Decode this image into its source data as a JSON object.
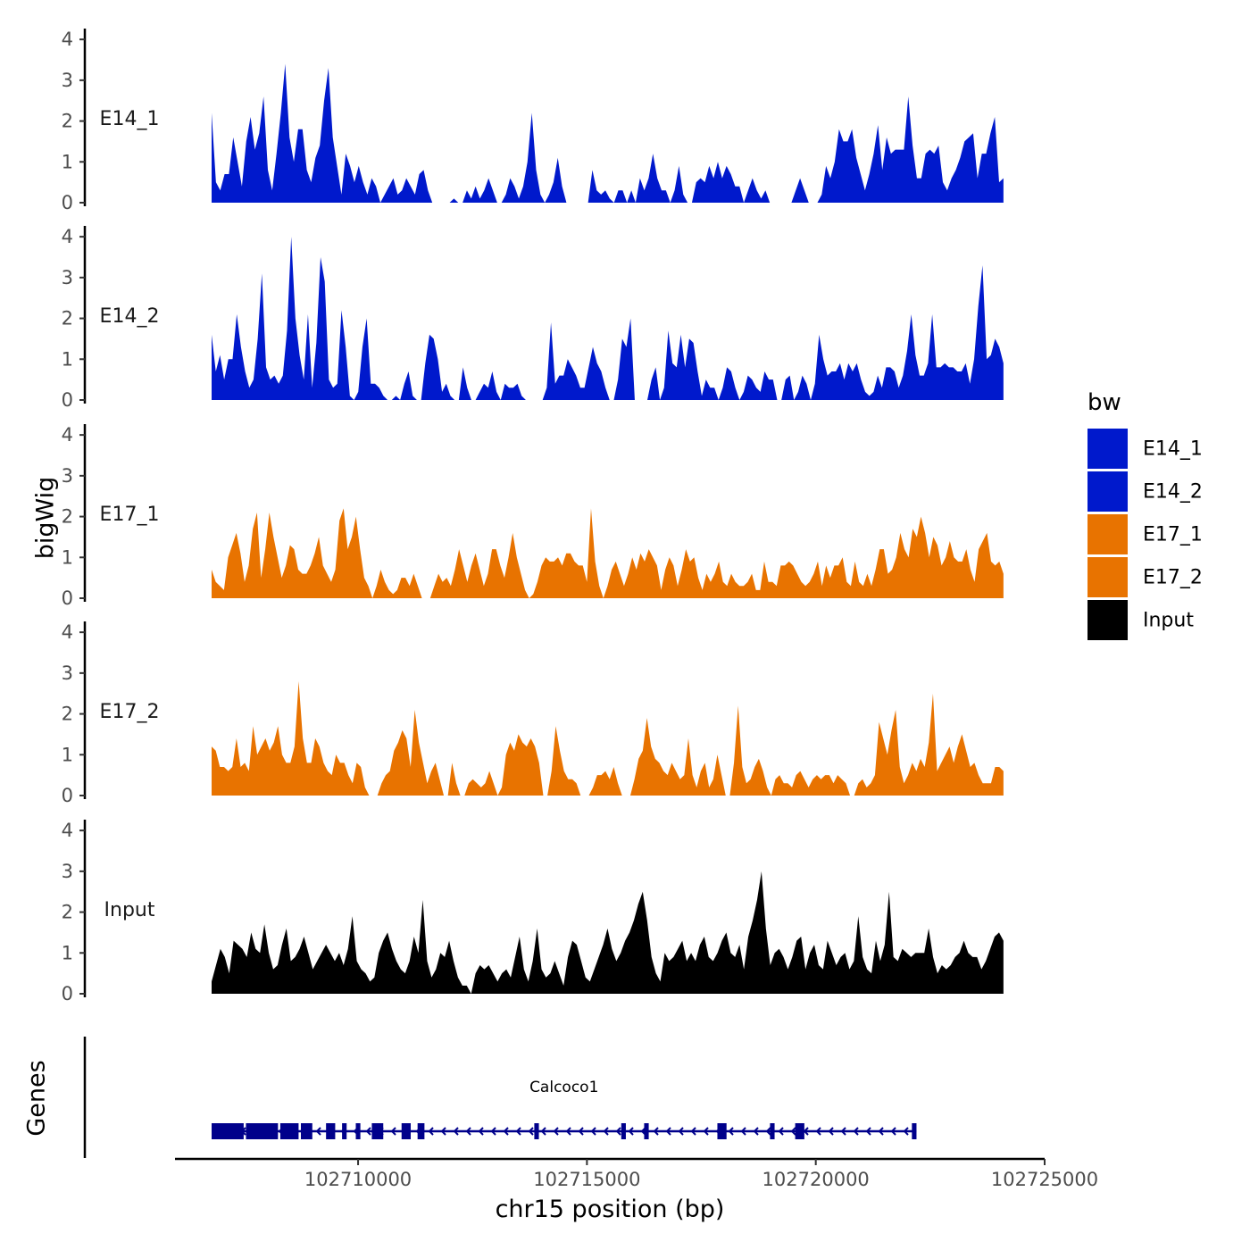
{
  "chart_data": {
    "type": "area",
    "xlabel": "chr15 position (bp)",
    "ylabel": "bigWig",
    "genes_label": "Genes",
    "xlim": [
      102706000,
      102725000
    ],
    "x_ticks": [
      102710000,
      102715000,
      102720000,
      102725000
    ],
    "x_tick_labels": [
      "102710000",
      "102715000",
      "102720000",
      "102725000"
    ],
    "data_range": [
      102706800,
      102724100
    ],
    "ylim": [
      0,
      4.2
    ],
    "y_ticks": [
      0,
      1,
      2,
      3,
      4
    ],
    "y_tick_labels": [
      "0",
      "1",
      "2",
      "3",
      "4"
    ],
    "tracks": [
      {
        "name": "E14_1",
        "color": "#0019cc",
        "values": [
          2.2,
          0.5,
          0.3,
          0.7,
          0.7,
          1.6,
          1.0,
          0.4,
          1.5,
          2.1,
          1.3,
          1.7,
          2.6,
          0.8,
          0.3,
          1.2,
          2.2,
          3.4,
          1.6,
          1.0,
          1.8,
          1.8,
          0.8,
          0.5,
          1.1,
          1.4,
          2.5,
          3.3,
          1.6,
          0.9,
          0.2,
          1.2,
          0.9,
          0.5,
          0.9,
          0.5,
          0.2,
          0.6,
          0.4,
          0.0,
          0.2,
          0.4,
          0.6,
          0.2,
          0.3,
          0.6,
          0.4,
          0.2,
          0.7,
          0.8,
          0.3,
          0.0,
          0.0,
          0.0,
          0.0,
          0.0,
          0.1,
          0.0,
          0.0,
          0.3,
          0.1,
          0.4,
          0.1,
          0.3,
          0.6,
          0.3,
          0.0,
          0.0,
          0.2,
          0.6,
          0.4,
          0.1,
          0.4,
          1.0,
          2.2,
          0.8,
          0.2,
          0.0,
          0.2,
          0.5,
          1.1,
          0.4,
          0.0,
          0.0,
          0.0,
          0.0,
          0.0,
          0.0,
          0.8,
          0.3,
          0.2,
          0.3,
          0.1,
          0.0,
          0.3,
          0.3,
          0.0,
          0.3,
          0.0,
          0.6,
          0.3,
          0.6,
          1.2,
          0.6,
          0.3,
          0.3,
          0.0,
          0.3,
          0.9,
          0.2,
          0.0,
          0.0,
          0.5,
          0.6,
          0.5,
          0.9,
          0.6,
          1.0,
          0.6,
          0.9,
          0.7,
          0.4,
          0.4,
          0.0,
          0.3,
          0.6,
          0.3,
          0.1,
          0.3,
          0.0,
          0.0,
          0.0,
          0.0,
          0.0,
          0.0,
          0.3,
          0.6,
          0.3,
          0.0,
          0.0,
          0.0,
          0.2,
          0.9,
          0.6,
          1.0,
          1.8,
          1.5,
          1.5,
          1.8,
          1.1,
          0.7,
          0.3,
          0.7,
          1.2,
          1.9,
          0.8,
          1.6,
          1.2,
          1.3,
          1.3,
          1.3,
          2.6,
          1.4,
          0.6,
          0.6,
          1.2,
          1.3,
          1.2,
          1.4,
          0.5,
          0.3,
          0.6,
          0.8,
          1.1,
          1.5,
          1.6,
          1.7,
          0.6,
          1.2,
          1.2,
          1.7,
          2.1,
          0.5,
          0.6
        ]
      },
      {
        "name": "E14_2",
        "color": "#0019cc",
        "values": [
          1.6,
          0.7,
          1.1,
          0.5,
          1.0,
          1.0,
          2.1,
          1.3,
          0.7,
          0.3,
          0.5,
          1.5,
          3.1,
          0.8,
          0.5,
          0.6,
          0.4,
          0.6,
          1.7,
          4.0,
          2.0,
          1.1,
          0.5,
          2.1,
          0.3,
          1.4,
          3.5,
          2.9,
          0.5,
          0.3,
          0.4,
          2.2,
          1.3,
          0.1,
          0.0,
          0.2,
          1.3,
          2.0,
          0.4,
          0.4,
          0.3,
          0.1,
          0.0,
          0.0,
          0.1,
          0.0,
          0.4,
          0.7,
          0.1,
          0.0,
          0.0,
          0.9,
          1.6,
          1.5,
          1.0,
          0.2,
          0.4,
          0.1,
          0.0,
          0.0,
          0.8,
          0.3,
          0.0,
          0.0,
          0.2,
          0.4,
          0.3,
          0.7,
          0.2,
          0.0,
          0.4,
          0.3,
          0.3,
          0.4,
          0.1,
          0.0,
          0.0,
          0.0,
          0.0,
          0.0,
          0.3,
          1.9,
          0.4,
          0.6,
          0.6,
          1.0,
          0.8,
          0.6,
          0.3,
          0.3,
          0.8,
          1.3,
          0.9,
          0.7,
          0.3,
          0.0,
          0.0,
          0.5,
          1.5,
          1.3,
          2.0,
          0.0,
          0.0,
          0.0,
          0.0,
          0.5,
          0.8,
          0.0,
          0.3,
          1.7,
          0.9,
          0.8,
          1.6,
          0.8,
          1.5,
          1.4,
          0.7,
          0.1,
          0.5,
          0.3,
          0.3,
          0.0,
          0.3,
          0.8,
          0.7,
          0.3,
          0.0,
          0.2,
          0.6,
          0.5,
          0.3,
          0.2,
          0.7,
          0.5,
          0.5,
          0.0,
          0.0,
          0.5,
          0.6,
          0.0,
          0.2,
          0.6,
          0.4,
          0.0,
          0.4,
          1.6,
          1.0,
          0.6,
          0.7,
          0.7,
          0.9,
          0.5,
          0.9,
          0.7,
          0.9,
          0.5,
          0.2,
          0.1,
          0.2,
          0.6,
          0.3,
          0.8,
          0.8,
          0.7,
          0.3,
          0.6,
          1.2,
          2.1,
          1.1,
          0.6,
          0.6,
          0.9,
          2.1,
          0.8,
          0.8,
          0.9,
          0.8,
          0.8,
          0.7,
          0.7,
          0.9,
          0.4,
          1.0,
          2.3,
          3.3,
          1.0,
          1.1,
          1.5,
          1.3,
          0.9
        ]
      },
      {
        "name": "E17_1",
        "color": "#e87300",
        "values": [
          0.7,
          0.4,
          0.3,
          0.2,
          1.0,
          1.3,
          1.6,
          1.1,
          0.4,
          0.8,
          1.7,
          2.1,
          0.5,
          1.2,
          2.1,
          1.5,
          1.0,
          0.5,
          0.8,
          1.3,
          1.2,
          0.7,
          0.6,
          0.6,
          0.8,
          1.1,
          1.5,
          0.8,
          0.6,
          0.4,
          0.7,
          1.9,
          2.2,
          1.2,
          1.5,
          2.0,
          1.2,
          0.5,
          0.3,
          0.0,
          0.3,
          0.7,
          0.4,
          0.2,
          0.1,
          0.2,
          0.5,
          0.5,
          0.3,
          0.6,
          0.3,
          0.0,
          0.0,
          0.0,
          0.3,
          0.6,
          0.4,
          0.5,
          0.3,
          0.7,
          1.2,
          0.8,
          0.4,
          0.8,
          1.1,
          0.7,
          0.3,
          0.6,
          1.2,
          1.2,
          0.8,
          0.5,
          1.0,
          1.6,
          1.0,
          0.6,
          0.2,
          0.0,
          0.1,
          0.4,
          0.8,
          1.0,
          0.9,
          0.9,
          1.0,
          0.8,
          1.1,
          1.1,
          0.9,
          0.8,
          0.8,
          0.4,
          2.2,
          0.9,
          0.3,
          0.0,
          0.3,
          0.7,
          0.9,
          0.6,
          0.3,
          0.6,
          1.0,
          0.7,
          1.1,
          0.9,
          1.2,
          1.0,
          0.8,
          0.2,
          0.7,
          1.0,
          0.8,
          0.3,
          0.7,
          1.2,
          0.9,
          1.0,
          0.5,
          0.2,
          0.6,
          0.4,
          0.6,
          0.9,
          0.4,
          0.3,
          0.6,
          0.4,
          0.3,
          0.3,
          0.4,
          0.6,
          0.2,
          0.2,
          0.9,
          0.4,
          0.4,
          0.3,
          0.8,
          0.8,
          0.9,
          0.8,
          0.6,
          0.4,
          0.3,
          0.4,
          0.6,
          0.9,
          0.3,
          0.8,
          0.5,
          0.8,
          0.8,
          1.0,
          0.4,
          0.3,
          0.9,
          0.4,
          0.3,
          0.6,
          0.3,
          0.7,
          1.2,
          1.2,
          0.6,
          0.7,
          1.0,
          1.6,
          1.2,
          1.0,
          1.7,
          1.5,
          2.0,
          1.6,
          1.0,
          1.5,
          1.3,
          0.8,
          1.0,
          1.4,
          1.0,
          0.9,
          0.9,
          1.2,
          0.7,
          0.4,
          1.2,
          1.4,
          1.6,
          0.9,
          0.8,
          0.9,
          0.6
        ]
      },
      {
        "name": "E17_2",
        "color": "#e87300",
        "values": [
          1.2,
          1.1,
          0.7,
          0.7,
          0.6,
          0.7,
          1.4,
          0.7,
          0.8,
          0.6,
          1.7,
          1.0,
          1.2,
          1.4,
          1.1,
          1.3,
          1.7,
          1.0,
          0.8,
          0.8,
          1.2,
          2.8,
          1.4,
          0.8,
          0.8,
          1.4,
          1.2,
          0.8,
          0.6,
          0.5,
          1.0,
          0.8,
          0.8,
          0.5,
          0.3,
          0.8,
          0.7,
          0.2,
          0.0,
          0.0,
          0.0,
          0.3,
          0.5,
          0.6,
          1.1,
          1.3,
          1.6,
          1.4,
          0.7,
          2.1,
          1.3,
          0.8,
          0.3,
          0.6,
          0.8,
          0.4,
          0.0,
          0.0,
          0.8,
          0.3,
          0.0,
          0.0,
          0.3,
          0.4,
          0.3,
          0.2,
          0.3,
          0.6,
          0.3,
          0.0,
          0.2,
          1.0,
          1.3,
          1.1,
          1.5,
          1.3,
          1.2,
          1.4,
          1.2,
          0.8,
          0.0,
          0.0,
          0.6,
          1.7,
          1.1,
          0.6,
          0.4,
          0.4,
          0.3,
          0.0,
          0.0,
          0.0,
          0.2,
          0.5,
          0.5,
          0.6,
          0.4,
          0.7,
          0.3,
          0.0,
          0.0,
          0.0,
          0.4,
          0.9,
          1.1,
          1.9,
          1.2,
          0.9,
          0.8,
          0.6,
          0.5,
          0.8,
          0.6,
          0.4,
          0.5,
          1.4,
          0.5,
          0.2,
          0.6,
          0.8,
          0.2,
          0.4,
          1.0,
          0.5,
          0.0,
          0.0,
          0.8,
          2.2,
          0.7,
          0.3,
          0.4,
          0.7,
          0.9,
          0.6,
          0.2,
          0.0,
          0.4,
          0.5,
          0.3,
          0.3,
          0.2,
          0.5,
          0.6,
          0.4,
          0.2,
          0.4,
          0.5,
          0.4,
          0.5,
          0.5,
          0.3,
          0.5,
          0.4,
          0.3,
          0.0,
          0.0,
          0.3,
          0.4,
          0.2,
          0.3,
          0.5,
          1.8,
          1.4,
          1.0,
          1.6,
          2.1,
          0.7,
          0.3,
          0.5,
          0.8,
          0.6,
          0.9,
          0.7,
          1.3,
          2.5,
          0.6,
          0.8,
          1.0,
          1.2,
          0.8,
          1.2,
          1.5,
          1.1,
          0.7,
          0.8,
          0.5,
          0.3,
          0.3,
          0.3,
          0.7,
          0.7,
          0.6
        ]
      },
      {
        "name": "Input",
        "color": "#000000",
        "values": [
          0.3,
          0.7,
          1.1,
          0.9,
          0.5,
          1.3,
          1.2,
          1.1,
          0.9,
          1.5,
          1.1,
          1.0,
          1.7,
          1.0,
          0.6,
          0.7,
          1.2,
          1.6,
          0.8,
          0.9,
          1.1,
          1.4,
          1.0,
          0.6,
          0.8,
          1.0,
          1.2,
          1.0,
          0.8,
          1.0,
          0.7,
          1.1,
          1.9,
          0.8,
          0.6,
          0.5,
          0.3,
          0.4,
          1.0,
          1.3,
          1.5,
          1.1,
          0.8,
          0.6,
          0.5,
          0.8,
          1.4,
          1.0,
          2.3,
          0.8,
          0.4,
          0.6,
          1.0,
          0.9,
          1.3,
          0.8,
          0.4,
          0.2,
          0.2,
          0.0,
          0.5,
          0.7,
          0.6,
          0.7,
          0.5,
          0.3,
          0.5,
          0.6,
          0.4,
          0.9,
          1.4,
          0.6,
          0.3,
          0.8,
          1.6,
          0.6,
          0.4,
          0.5,
          0.8,
          0.5,
          0.2,
          0.9,
          1.3,
          1.2,
          0.8,
          0.4,
          0.3,
          0.6,
          0.9,
          1.2,
          1.6,
          1.1,
          0.8,
          1.0,
          1.3,
          1.5,
          1.8,
          2.2,
          2.5,
          1.8,
          0.9,
          0.5,
          0.3,
          1.0,
          0.8,
          0.9,
          1.1,
          1.3,
          0.8,
          1.0,
          0.8,
          1.2,
          1.4,
          0.9,
          0.8,
          1.0,
          1.3,
          1.5,
          1.0,
          0.9,
          1.2,
          0.6,
          1.4,
          1.8,
          2.3,
          3.0,
          1.6,
          0.7,
          1.0,
          1.1,
          0.9,
          0.6,
          0.9,
          1.3,
          1.4,
          0.6,
          1.0,
          1.2,
          0.7,
          0.6,
          1.3,
          1.0,
          0.7,
          0.9,
          1.0,
          0.6,
          0.8,
          1.9,
          0.9,
          0.6,
          0.5,
          1.3,
          0.8,
          1.2,
          2.5,
          0.9,
          0.8,
          1.1,
          1.0,
          0.9,
          1.0,
          1.0,
          1.0,
          1.6,
          0.9,
          0.5,
          0.7,
          0.6,
          0.7,
          0.9,
          1.0,
          1.3,
          1.0,
          0.9,
          0.9,
          0.6,
          0.8,
          1.1,
          1.4,
          1.5,
          1.3
        ]
      }
    ],
    "legend": {
      "title": "bw",
      "position": "right",
      "entries": [
        {
          "label": "E14_1",
          "color": "#0019cc"
        },
        {
          "label": "E14_2",
          "color": "#0019cc"
        },
        {
          "label": "E17_1",
          "color": "#e87300"
        },
        {
          "label": "E17_2",
          "color": "#e87300"
        },
        {
          "label": "Input",
          "color": "#000000"
        }
      ]
    },
    "gene": {
      "name": "Calcoco1",
      "strand": "-",
      "color": "#00008b",
      "start": 102706800,
      "end": 102722200,
      "exons": [
        [
          102706800,
          102707500
        ],
        [
          102707550,
          102708250
        ],
        [
          102708300,
          102708700
        ],
        [
          102708750,
          102709000
        ],
        [
          102709300,
          102709500
        ],
        [
          102709650,
          102709750
        ],
        [
          102709950,
          102710050
        ],
        [
          102710300,
          102710550
        ],
        [
          102710950,
          102711150
        ],
        [
          102711300,
          102711450
        ],
        [
          102713850,
          102713950
        ],
        [
          102715750,
          102715850
        ],
        [
          102716250,
          102716350
        ],
        [
          102717850,
          102718050
        ],
        [
          102719000,
          102719100
        ],
        [
          102719550,
          102719750
        ],
        [
          102722100,
          102722200
        ]
      ]
    }
  }
}
